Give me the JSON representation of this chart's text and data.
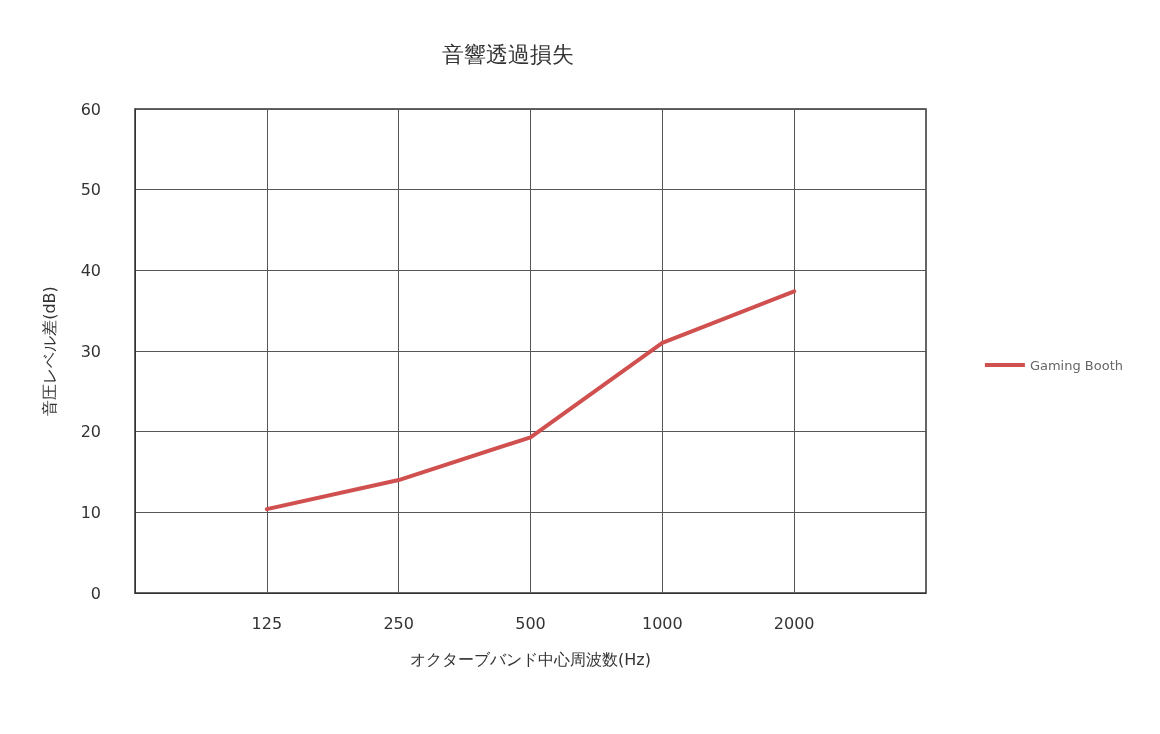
{
  "chart_data": {
    "type": "line",
    "title": "音響透過損失",
    "xlabel": "オクターブバンド中心周波数(Hz)",
    "ylabel": "音圧レベル差(dB)",
    "categories": [
      null,
      "125",
      "250",
      "500",
      "1000",
      "2000",
      null
    ],
    "series": [
      {
        "name": "Gaming Booth",
        "color": "#d0504f",
        "values": [
          null,
          10.4,
          14.0,
          19.3,
          31.0,
          37.4,
          null
        ]
      }
    ],
    "ylim": [
      0,
      60
    ],
    "yticks": [
      0,
      10,
      20,
      30,
      40,
      50,
      60
    ],
    "grid": true,
    "legend": "right",
    "marker": "none",
    "line_style": "solid"
  }
}
